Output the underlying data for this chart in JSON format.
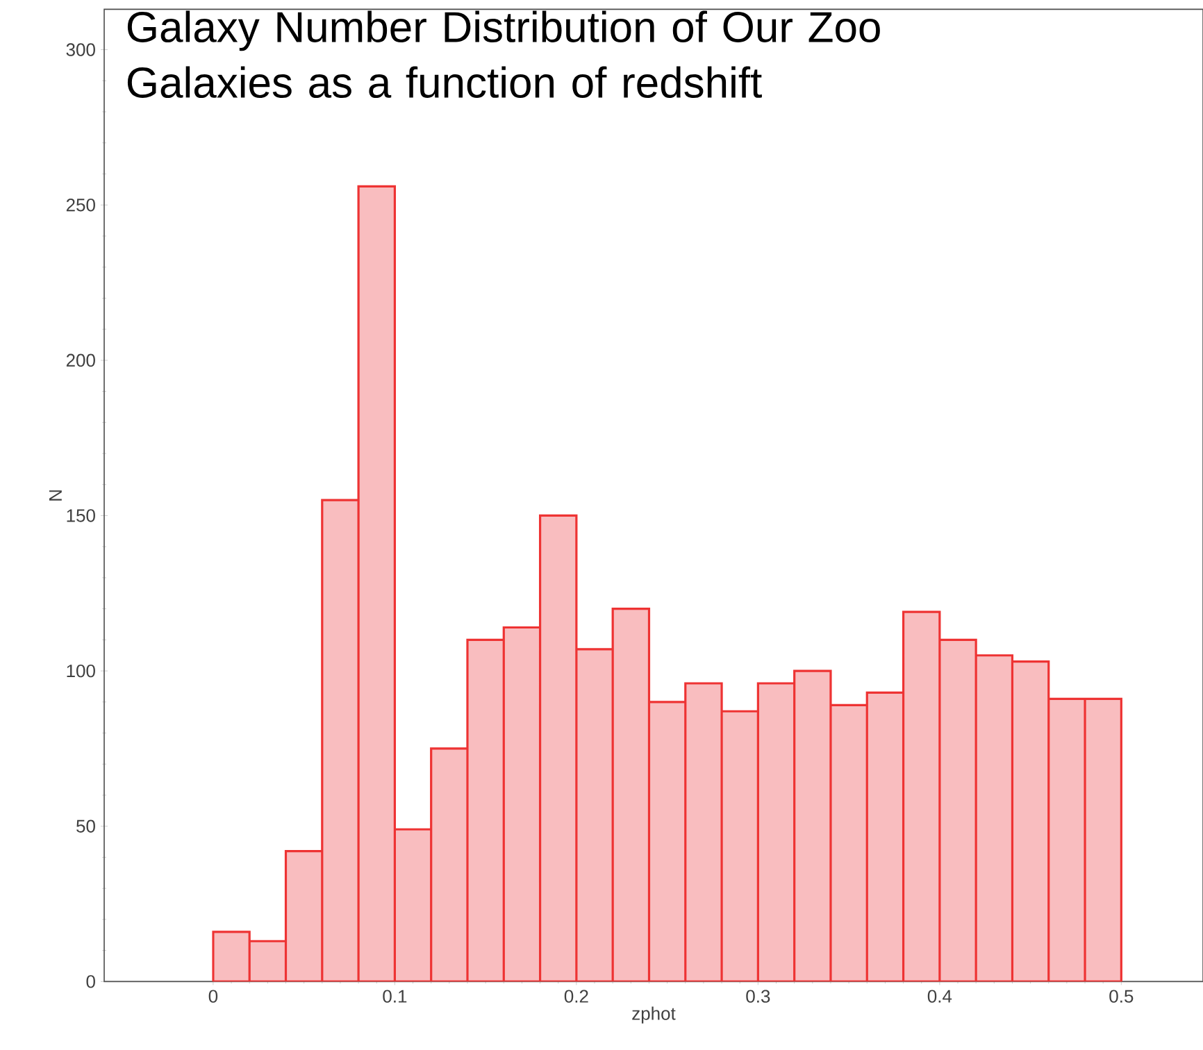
{
  "chart_data": {
    "type": "histogram",
    "title": "Galaxy Number Distribution of Our Zoo Galaxies as a function of redshift",
    "xlabel": "zphot",
    "ylabel": "N",
    "bins": [
      0,
      0.02,
      0.04,
      0.06,
      0.08,
      0.1,
      0.12,
      0.14,
      0.16,
      0.18,
      0.2,
      0.22,
      0.24,
      0.26,
      0.28,
      0.3,
      0.32,
      0.34,
      0.36,
      0.38,
      0.4,
      0.42,
      0.44,
      0.46,
      0.48,
      0.5
    ],
    "values": [
      16,
      13,
      42,
      155,
      256,
      49,
      75,
      110,
      114,
      150,
      107,
      120,
      90,
      96,
      87,
      96,
      100,
      89,
      93,
      119,
      110,
      105,
      103,
      91,
      91
    ],
    "color": "#f9bdbf",
    "xlim": [
      -0.06,
      0.545
    ],
    "ylim": [
      0,
      313
    ],
    "xticks": [
      0,
      0.1,
      0.2,
      0.3,
      0.4,
      0.5
    ],
    "yticks": [
      0,
      50,
      100,
      150,
      200,
      250,
      300
    ]
  }
}
